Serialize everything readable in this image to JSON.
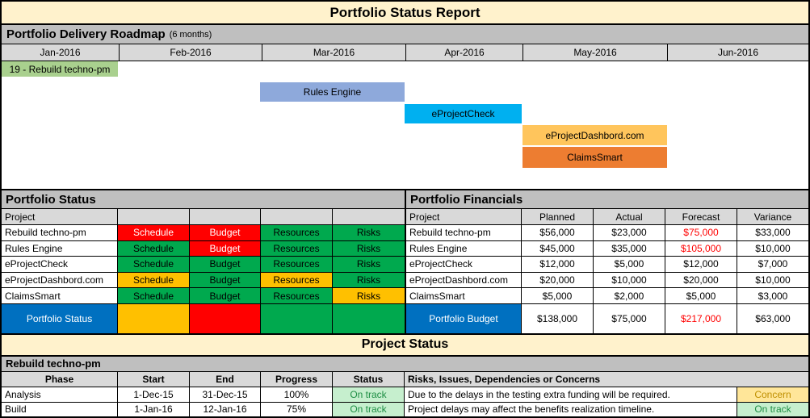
{
  "title": "Portfolio Status Report",
  "roadmap": {
    "heading": "Portfolio Delivery Roadmap",
    "heading_suffix": "(6 months)",
    "months": [
      "Jan-2016",
      "Feb-2016",
      "Mar-2016",
      "Apr-2016",
      "May-2016",
      "Jun-2016"
    ],
    "bars": [
      {
        "label": "19 - Rebuild techno-pm",
        "color": "#A9D08E",
        "month": "Jan-2016"
      },
      {
        "label": "Rules Engine",
        "color": "#8EA9DB",
        "month": "Mar-2016"
      },
      {
        "label": "eProjectCheck",
        "color": "#00B0F0",
        "month": "Apr-2016"
      },
      {
        "label": "eProjectDashbord.com",
        "color": "#FFC55C",
        "month": "May-2016"
      },
      {
        "label": "ClaimsSmart",
        "color": "#ED7D31",
        "month": "May-2016"
      }
    ]
  },
  "portfolio_status": {
    "heading": "Portfolio Status",
    "col_header": "Project",
    "rows": [
      {
        "project": "Rebuild techno-pm",
        "cells": [
          {
            "label": "Schedule",
            "status": "red"
          },
          {
            "label": "Budget",
            "status": "red"
          },
          {
            "label": "Resources",
            "status": "green"
          },
          {
            "label": "Risks",
            "status": "green"
          }
        ]
      },
      {
        "project": "Rules Engine",
        "cells": [
          {
            "label": "Schedule",
            "status": "green"
          },
          {
            "label": "Budget",
            "status": "red"
          },
          {
            "label": "Resources",
            "status": "green"
          },
          {
            "label": "Risks",
            "status": "green"
          }
        ]
      },
      {
        "project": "eProjectCheck",
        "cells": [
          {
            "label": "Schedule",
            "status": "green"
          },
          {
            "label": "Budget",
            "status": "green"
          },
          {
            "label": "Resources",
            "status": "green"
          },
          {
            "label": "Risks",
            "status": "green"
          }
        ]
      },
      {
        "project": "eProjectDashbord.com",
        "cells": [
          {
            "label": "Schedule",
            "status": "amber"
          },
          {
            "label": "Budget",
            "status": "green"
          },
          {
            "label": "Resources",
            "status": "amber"
          },
          {
            "label": "Risks",
            "status": "green"
          }
        ]
      },
      {
        "project": "ClaimsSmart",
        "cells": [
          {
            "label": "Schedule",
            "status": "green"
          },
          {
            "label": "Budget",
            "status": "green"
          },
          {
            "label": "Resources",
            "status": "green"
          },
          {
            "label": "Risks",
            "status": "amber"
          }
        ]
      }
    ],
    "summary": {
      "label": "Portfolio Status",
      "cells": [
        "amber",
        "red",
        "green",
        "green"
      ]
    }
  },
  "portfolio_financials": {
    "heading": "Portfolio Financials",
    "columns": [
      "Project",
      "Planned",
      "Actual",
      "Forecast",
      "Variance"
    ],
    "rows": [
      {
        "project": "Rebuild techno-pm",
        "planned": "$56,000",
        "actual": "$23,000",
        "forecast": "$75,000",
        "forecast_flag": "red",
        "variance": "$33,000"
      },
      {
        "project": "Rules Engine",
        "planned": "$45,000",
        "actual": "$35,000",
        "forecast": "$105,000",
        "forecast_flag": "red",
        "variance": "$10,000"
      },
      {
        "project": "eProjectCheck",
        "planned": "$12,000",
        "actual": "$5,000",
        "forecast": "$12,000",
        "forecast_flag": "black",
        "variance": "$7,000"
      },
      {
        "project": "eProjectDashbord.com",
        "planned": "$20,000",
        "actual": "$10,000",
        "forecast": "$20,000",
        "forecast_flag": "black",
        "variance": "$10,000"
      },
      {
        "project": "ClaimsSmart",
        "planned": "$5,000",
        "actual": "$2,000",
        "forecast": "$5,000",
        "forecast_flag": "black",
        "variance": "$3,000"
      }
    ],
    "summary": {
      "label": "Portfolio Budget",
      "planned": "$138,000",
      "actual": "$75,000",
      "forecast": "$217,000",
      "forecast_flag": "red",
      "variance": "$63,000"
    }
  },
  "project_status": {
    "heading": "Project Status",
    "project": "Rebuild techno-pm",
    "columns": [
      "Phase",
      "Start",
      "End",
      "Progress",
      "Status",
      "Risks, Issues, Dependencies or Concerns"
    ],
    "rows": [
      {
        "phase": "Analysis",
        "start": "1-Dec-15",
        "end": "31-Dec-15",
        "progress": "100%",
        "status": "On track",
        "status_flag": "ontrack",
        "risk": "Due to the delays in the testing extra funding will be required.",
        "badge": "Concern",
        "badge_flag": "concern"
      },
      {
        "phase": "Build",
        "start": "1-Jan-16",
        "end": "12-Jan-16",
        "progress": "75%",
        "status": "On track",
        "status_flag": "ontrack",
        "risk": "Project delays may affect the benefits realization timeline.",
        "badge": "On track",
        "badge_flag": "ontrack"
      }
    ]
  },
  "colors": {
    "title_bg": "#FFF2CC",
    "section_header_bg": "#BFBFBF",
    "column_header_bg": "#D9D9D9",
    "status_red": "#FF0000",
    "status_green": "#00A94E",
    "status_amber": "#FFC000",
    "summary_blue": "#0070C0",
    "ontrack_bg": "#C6EFCE",
    "concern_bg": "#FFE699"
  }
}
